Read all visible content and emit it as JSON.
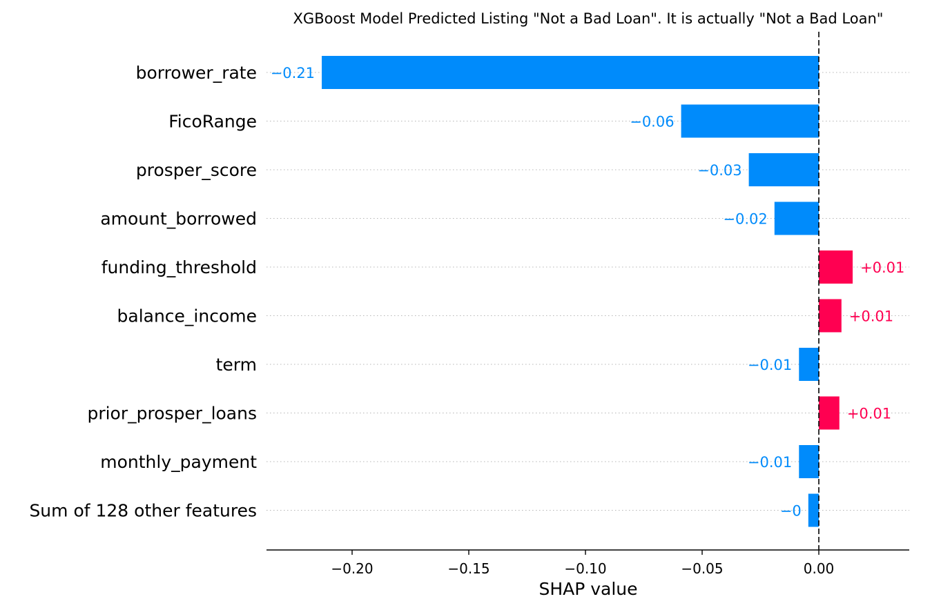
{
  "chart_data": {
    "type": "bar",
    "orientation": "horizontal",
    "title": "XGBoost Model Predicted Listing \"Not a Bad Loan\". It is actually \"Not a Bad Loan\"",
    "xlabel": "SHAP value",
    "ylabel": "",
    "xlim": [
      -0.237,
      0.038
    ],
    "xticks": [
      -0.2,
      -0.15,
      -0.1,
      -0.05,
      0.0
    ],
    "xtick_labels": [
      "−0.20",
      "−0.15",
      "−0.10",
      "−0.05",
      "0.00"
    ],
    "grid": "dotted horizontal per row",
    "colors": {
      "positive": "#ff0051",
      "negative": "#008bfb"
    },
    "categories": [
      "borrower_rate",
      "FicoRange",
      "prosper_score",
      "amount_borrowed",
      "funding_threshold",
      "balance_income",
      "term",
      "prior_prosper_loans",
      "monthly_payment",
      "Sum of 128 other features"
    ],
    "values": [
      -0.213,
      -0.059,
      -0.03,
      -0.019,
      0.0145,
      0.0097,
      -0.0085,
      0.0088,
      -0.0085,
      -0.0045
    ],
    "value_labels": [
      "−0.21",
      "−0.06",
      "−0.03",
      "−0.02",
      "+0.01",
      "+0.01",
      "−0.01",
      "+0.01",
      "−0.01",
      "−0"
    ]
  }
}
